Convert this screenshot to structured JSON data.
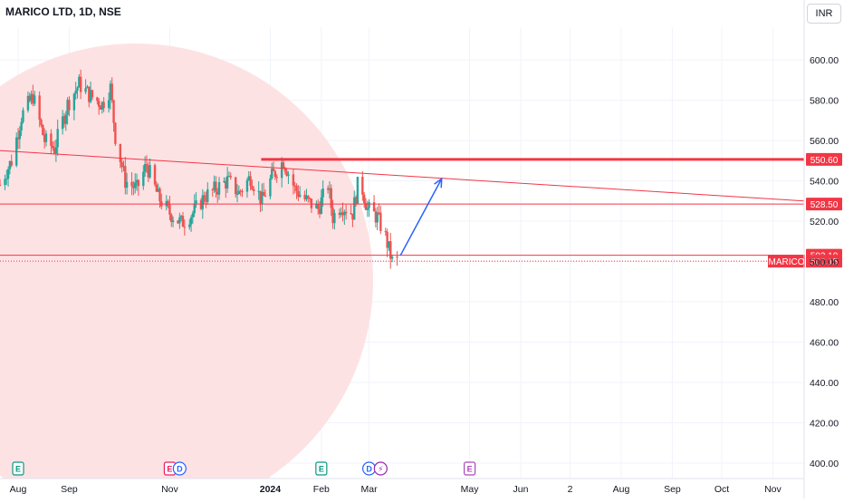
{
  "header": {
    "title": "MARICO LTD, 1D, NSE",
    "currency": "INR"
  },
  "colors": {
    "up": "#26a69a",
    "down": "#ef5350",
    "level": "#f23645",
    "arrow": "#2962ff",
    "circle": "#fde2e4",
    "grid": "#f0f3fa",
    "text": "#131722"
  },
  "chart_data": {
    "type": "candlestick",
    "title": "MARICO LTD, 1D, NSE",
    "yaxis": {
      "min": 396,
      "max": 616,
      "ticks": [
        400,
        420,
        440,
        460,
        480,
        500,
        520,
        540,
        560,
        580,
        600
      ],
      "tick_labels": [
        "400.00",
        "420.00",
        "440.00",
        "460.00",
        "480.00",
        "500.00",
        "520.00",
        "540.00",
        "560.00",
        "580.00",
        "600.00"
      ]
    },
    "xaxis": {
      "start": "2023-07-21",
      "end": "2024-11-20",
      "ticks": [
        {
          "date": "2023-08-01",
          "label": "Aug",
          "bold": false
        },
        {
          "date": "2023-09-01",
          "label": "Sep",
          "bold": false
        },
        {
          "date": "2023-11-01",
          "label": "Nov",
          "bold": false
        },
        {
          "date": "2024-01-01",
          "label": "2024",
          "bold": true
        },
        {
          "date": "2024-02-01",
          "label": "Feb",
          "bold": false
        },
        {
          "date": "2024-03-01",
          "label": "Mar",
          "bold": false
        },
        {
          "date": "2024-05-01",
          "label": "May",
          "bold": false
        },
        {
          "date": "2024-06-01",
          "label": "Jun",
          "bold": false
        },
        {
          "date": "2024-07-01",
          "label": "2",
          "bold": false
        },
        {
          "date": "2024-08-01",
          "label": "Aug",
          "bold": false
        },
        {
          "date": "2024-09-01",
          "label": "Sep",
          "bold": false
        },
        {
          "date": "2024-10-01",
          "label": "Oct",
          "bold": false
        },
        {
          "date": "2024-11-01",
          "label": "Nov",
          "bold": false
        }
      ]
    },
    "price_path": [
      [
        "2023-07-21",
        538
      ],
      [
        "2023-07-28",
        550
      ],
      [
        "2023-08-03",
        572
      ],
      [
        "2023-08-10",
        582
      ],
      [
        "2023-08-17",
        560
      ],
      [
        "2023-08-23",
        556
      ],
      [
        "2023-08-31",
        578
      ],
      [
        "2023-09-07",
        588
      ],
      [
        "2023-09-14",
        582
      ],
      [
        "2023-09-21",
        578
      ],
      [
        "2023-09-26",
        586
      ],
      [
        "2023-09-29",
        562
      ],
      [
        "2023-10-05",
        540
      ],
      [
        "2023-10-12",
        536
      ],
      [
        "2023-10-18",
        548
      ],
      [
        "2023-10-25",
        532
      ],
      [
        "2023-11-01",
        524
      ],
      [
        "2023-11-08",
        519
      ],
      [
        "2023-11-15",
        524
      ],
      [
        "2023-11-22",
        532
      ],
      [
        "2023-11-29",
        536
      ],
      [
        "2023-12-06",
        540
      ],
      [
        "2023-12-13",
        534
      ],
      [
        "2023-12-20",
        542
      ],
      [
        "2023-12-27",
        530
      ],
      [
        "2024-01-02",
        542
      ],
      [
        "2024-01-09",
        550
      ],
      [
        "2024-01-16",
        536
      ],
      [
        "2024-01-23",
        530
      ],
      [
        "2024-01-30",
        526
      ],
      [
        "2024-02-05",
        538
      ],
      [
        "2024-02-08",
        522
      ],
      [
        "2024-02-13",
        528
      ],
      [
        "2024-02-20",
        524
      ],
      [
        "2024-02-24",
        542
      ],
      [
        "2024-02-29",
        526
      ],
      [
        "2024-03-06",
        522
      ],
      [
        "2024-03-11",
        512
      ],
      [
        "2024-03-15",
        500
      ],
      [
        "2024-03-18",
        500.15
      ]
    ],
    "horizontal_levels": [
      {
        "price": 550.6,
        "label": "550.60",
        "weight": "bold"
      },
      {
        "price": 528.5,
        "label": "528.50",
        "weight": "normal"
      },
      {
        "price": 503.1,
        "label": "503.10",
        "weight": "normal"
      }
    ],
    "last_price": {
      "price": 500.15,
      "label": "500.15",
      "symbol": "MARICO"
    },
    "trendline": {
      "from": [
        "2023-07-21",
        555
      ],
      "to": [
        "2024-11-20",
        530
      ]
    },
    "forecast_arrow": {
      "from": [
        "2024-03-20",
        503
      ],
      "to": [
        "2024-04-14",
        541
      ]
    },
    "events": [
      {
        "date": "2023-08-01",
        "letter": "E",
        "kind": "earnings"
      },
      {
        "date": "2023-11-01",
        "letter": "E",
        "kind": "earnings"
      },
      {
        "date": "2023-11-07",
        "letter": "D",
        "kind": "dividend"
      },
      {
        "date": "2024-02-01",
        "letter": "E",
        "kind": "earnings"
      },
      {
        "date": "2024-03-01",
        "letter": "D",
        "kind": "dividend"
      },
      {
        "date": "2024-03-08",
        "letter": "⚡",
        "kind": "split"
      },
      {
        "date": "2024-05-01",
        "letter": "E",
        "kind": "earnings"
      }
    ]
  }
}
